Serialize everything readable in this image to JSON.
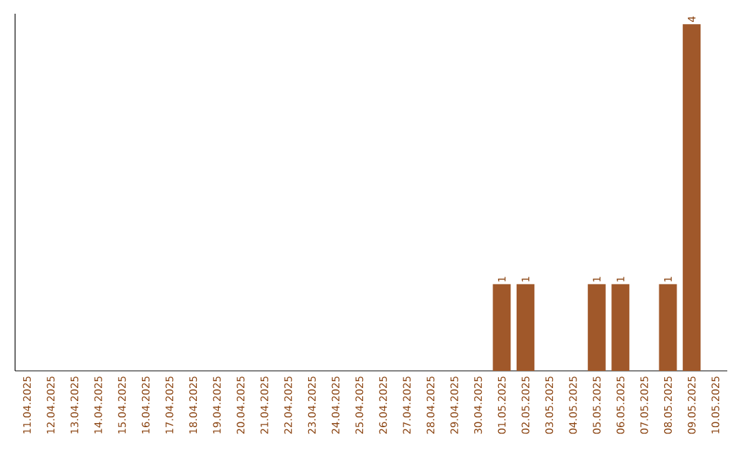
{
  "chart_data": {
    "type": "bar",
    "categories": [
      "11.04.2025",
      "12.04.2025",
      "13.04.2025",
      "14.04.2025",
      "15.04.2025",
      "16.04.2025",
      "17.04.2025",
      "18.04.2025",
      "19.04.2025",
      "20.04.2025",
      "21.04.2025",
      "22.04.2025",
      "23.04.2025",
      "24.04.2025",
      "25.04.2025",
      "26.04.2025",
      "27.04.2025",
      "28.04.2025",
      "29.04.2025",
      "30.04.2025",
      "01.05.2025",
      "02.05.2025",
      "03.05.2025",
      "04.05.2025",
      "05.05.2025",
      "06.05.2025",
      "07.05.2025",
      "08.05.2025",
      "09.05.2025",
      "10.05.2025"
    ],
    "values": [
      null,
      null,
      null,
      null,
      null,
      null,
      null,
      null,
      null,
      null,
      null,
      null,
      null,
      null,
      null,
      null,
      null,
      null,
      null,
      null,
      1,
      1,
      null,
      null,
      1,
      1,
      null,
      1,
      4,
      null
    ],
    "data_labels": true,
    "color": "#a0582a",
    "grid": false
  }
}
